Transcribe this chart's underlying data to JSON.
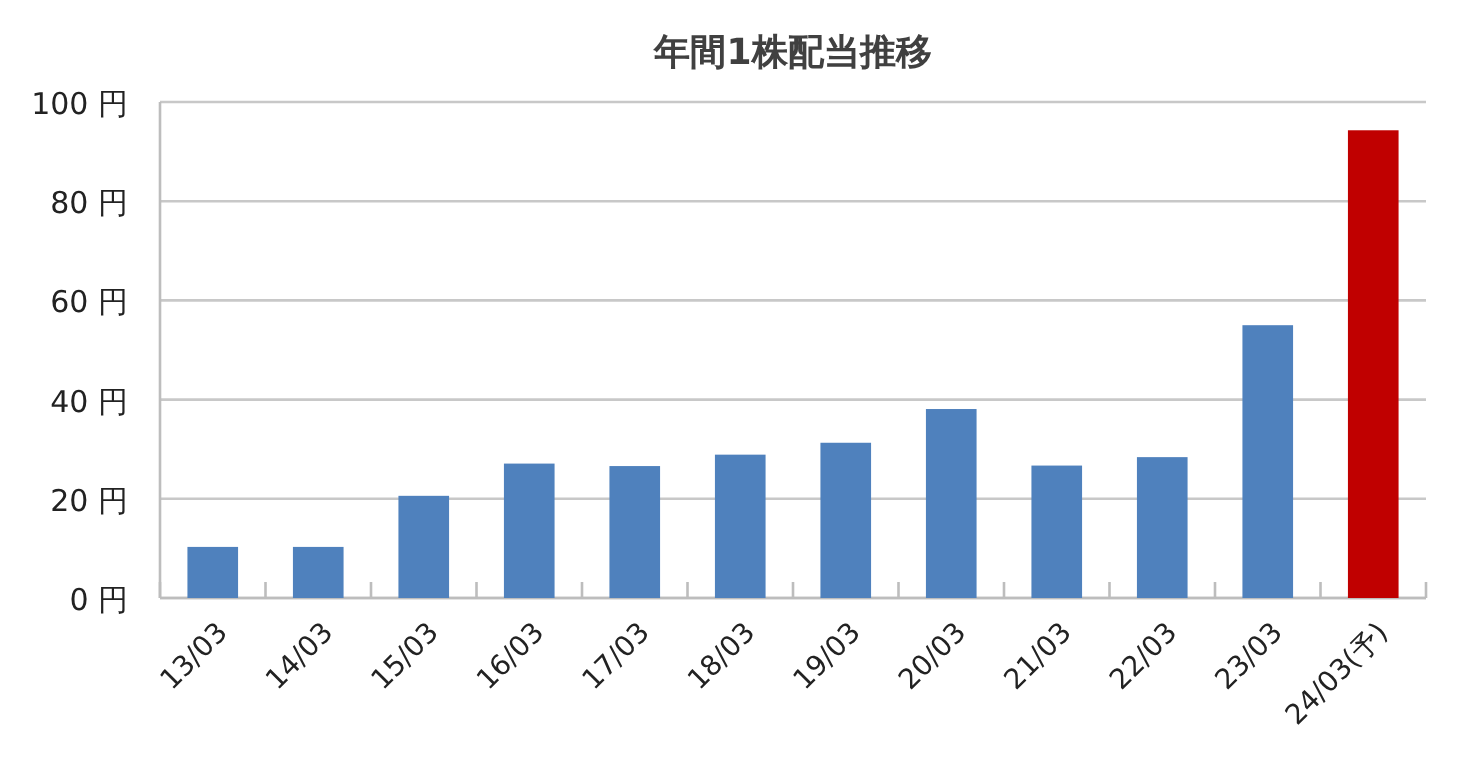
{
  "chart_data": {
    "type": "bar",
    "title": "年間1株配当推移",
    "categories": [
      "13/03",
      "14/03",
      "15/03",
      "16/03",
      "17/03",
      "18/03",
      "19/03",
      "20/03",
      "21/03",
      "22/03",
      "23/03",
      "24/03(予)"
    ],
    "values": [
      10.3,
      10.3,
      20.6,
      27.1,
      26.6,
      28.9,
      31.3,
      38.1,
      26.7,
      28.4,
      55.0,
      94.3
    ],
    "colors": [
      "#4f81bd",
      "#4f81bd",
      "#4f81bd",
      "#4f81bd",
      "#4f81bd",
      "#4f81bd",
      "#4f81bd",
      "#4f81bd",
      "#4f81bd",
      "#4f81bd",
      "#4f81bd",
      "#c00000"
    ],
    "ylim": [
      0,
      100
    ],
    "yticks": [
      {
        "value": 0,
        "label": "0 円"
      },
      {
        "value": 20,
        "label": "20 円"
      },
      {
        "value": 40,
        "label": "40 円"
      },
      {
        "value": 60,
        "label": "60 円"
      },
      {
        "value": 80,
        "label": "80 円"
      },
      {
        "value": 100,
        "label": "100 円"
      }
    ],
    "grid": "y"
  }
}
